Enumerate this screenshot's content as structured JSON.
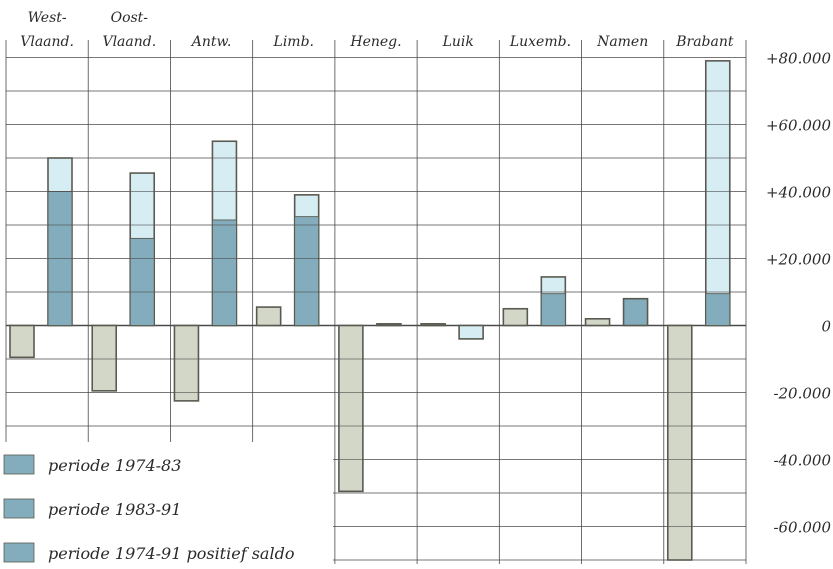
{
  "chart_data": {
    "type": "bar",
    "categories": [
      [
        "West-",
        "Vlaand."
      ],
      [
        "Oost-",
        "Vlaand."
      ],
      [
        "Antw."
      ],
      [
        "Limb."
      ],
      [
        "Heneg."
      ],
      [
        "Luik"
      ],
      [
        "Luxemb."
      ],
      [
        "Namen"
      ],
      [
        "Brabant"
      ]
    ],
    "series": [
      {
        "name": "periode 1974-83",
        "values": [
          -9500,
          -19500,
          -22500,
          5500,
          -49500,
          500,
          5000,
          2000,
          -70000
        ]
      },
      {
        "name": "periode 1983-91",
        "values": [
          40000,
          26000,
          31500,
          32500,
          500,
          -4000,
          9500,
          8000,
          9500
        ]
      },
      {
        "name": "periode 1974-91 positief saldo",
        "values": [
          50000,
          45500,
          55000,
          39000,
          null,
          null,
          14500,
          null,
          79000
        ]
      }
    ],
    "y_ticks": [
      "+80.000",
      "+60.000",
      "+40.000",
      "+20.000",
      "0",
      "-20.000",
      "-40.000",
      "-60.000"
    ],
    "y_tick_values": [
      80000,
      60000,
      40000,
      20000,
      0,
      -20000,
      -40000,
      -60000
    ],
    "ylim": [
      -70000,
      83000
    ],
    "grid": true,
    "legend_placement": "bottom-left",
    "colors": {
      "series_1974_83": "#d3d7c8",
      "series_1983_91": "#83adbd",
      "positive_saldo": "#d6eef3",
      "grid": "#4a4a4a",
      "bar_outline": "#5a5a52"
    }
  }
}
